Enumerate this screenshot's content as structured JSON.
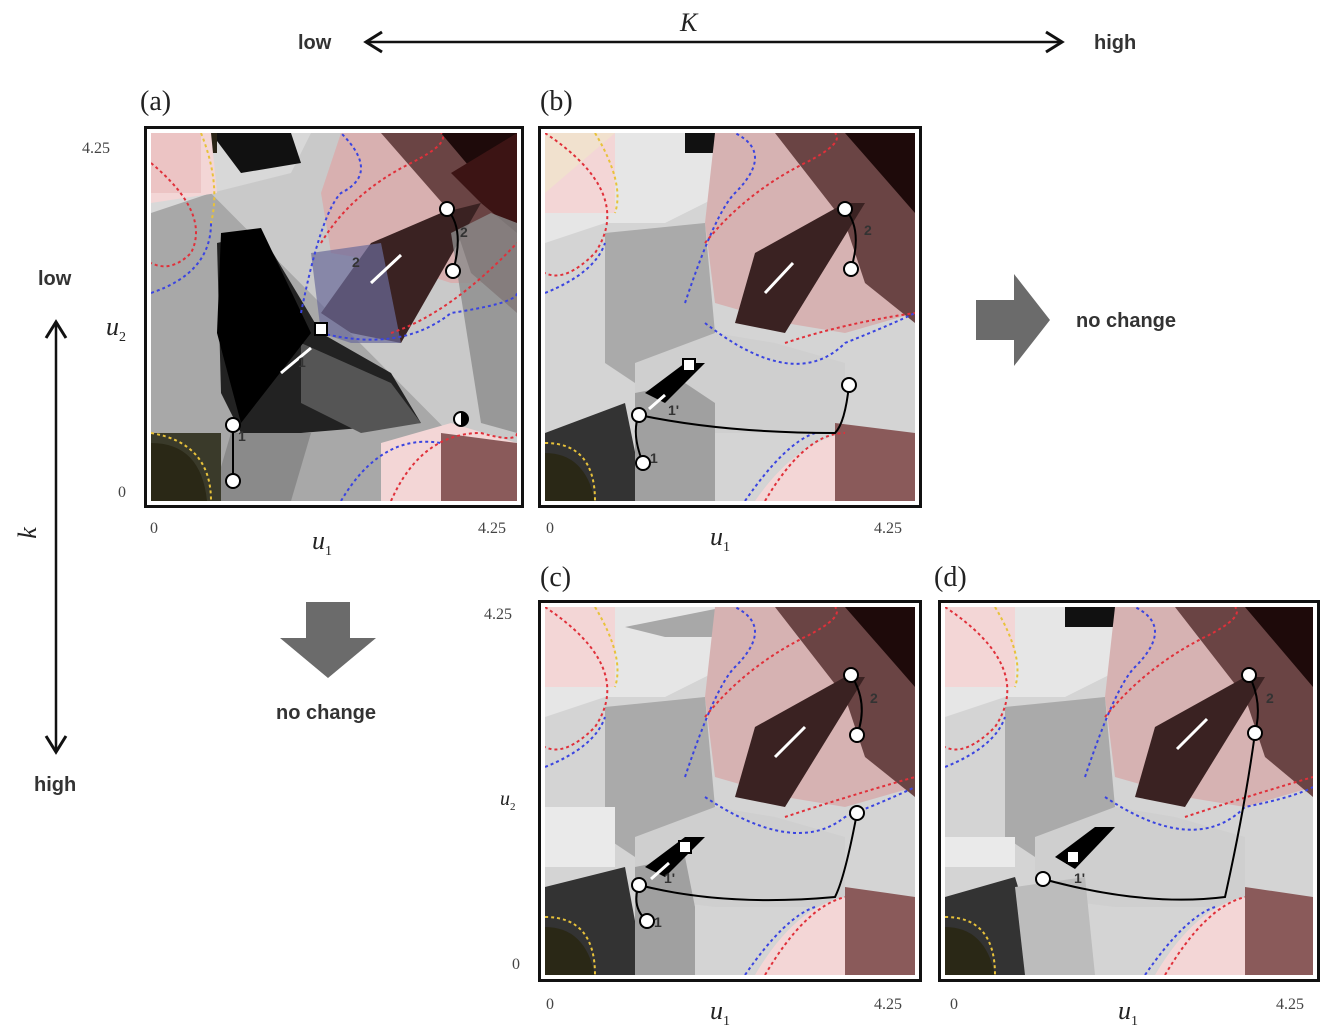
{
  "header": {
    "K_symbol": "K",
    "low": "low",
    "high": "high"
  },
  "side": {
    "k_symbol": "k",
    "low": "low",
    "high": "high"
  },
  "panels": {
    "a": {
      "label": "(a)"
    },
    "b": {
      "label": "(b)"
    },
    "c": {
      "label": "(c)"
    },
    "d": {
      "label": "(d)"
    }
  },
  "axes": {
    "tick_min": "0",
    "tick_max": "4.25",
    "u1_main": "u",
    "u1_sub": "1",
    "u2_main": "u",
    "u2_sub": "2"
  },
  "annotations": {
    "no_change_right": "no change",
    "no_change_down": "no change",
    "path1": "1",
    "path1p": "1'",
    "path2": "2"
  },
  "colors": {
    "arrow_gray": "#6b6b6b",
    "red_dotted": "#e0303a",
    "blue_dotted": "#3a44e0",
    "yellow_dotted": "#e8c23a"
  }
}
